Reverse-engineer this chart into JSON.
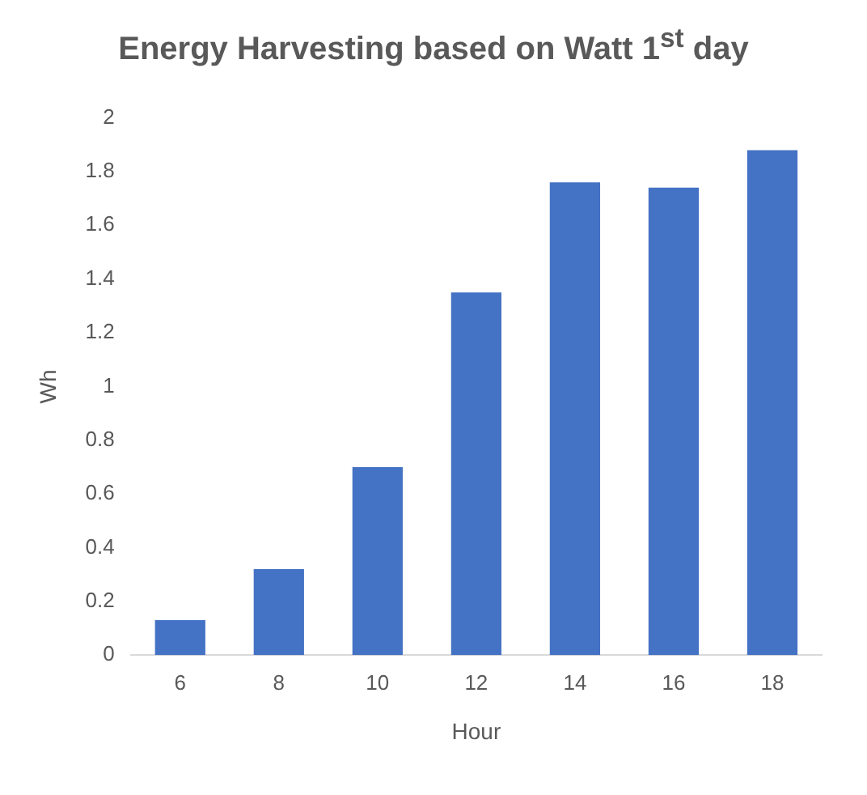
{
  "chart_data": {
    "type": "bar",
    "title": "Energy Harvesting based on Watt 1$^{st}$ day",
    "xlabel": "Hour",
    "ylabel": "Wh",
    "categories": [
      "6",
      "8",
      "10",
      "12",
      "14",
      "16",
      "18"
    ],
    "values": [
      0.13,
      0.32,
      0.7,
      1.35,
      1.76,
      1.74,
      1.88
    ],
    "color": "#4472c4",
    "ylim": [
      0,
      2
    ],
    "yticks": [
      0,
      0.2,
      0.4,
      0.6,
      0.8,
      1,
      1.2,
      1.4,
      1.6,
      1.8,
      2
    ],
    "grid": false,
    "legend": false
  }
}
